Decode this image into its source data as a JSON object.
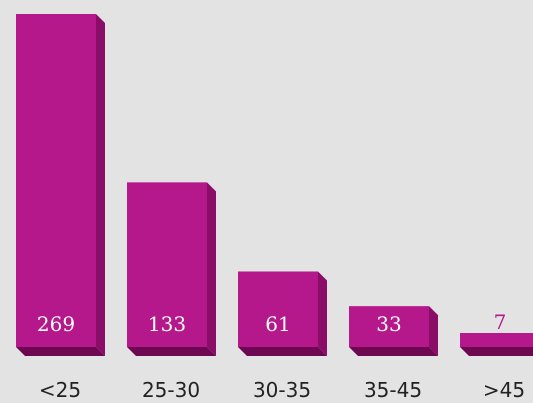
{
  "chart_data": {
    "type": "bar",
    "categories": [
      "<25",
      "25-30",
      "30-35",
      "35-45",
      ">45"
    ],
    "values": [
      269,
      133,
      61,
      33,
      7
    ],
    "value_labels": [
      "269",
      "133",
      "61",
      "33",
      "7"
    ],
    "title": "",
    "xlabel": "",
    "ylabel": "",
    "ylim": [
      0,
      269
    ],
    "grid": false,
    "legend": "none",
    "bar_style": "3d",
    "colors": {
      "background": "#e3e3e3",
      "bar_front": "#b4188a",
      "bar_side": "#8a0e68",
      "bar_top": "#9c1278",
      "bar_bottom": "#6e0752",
      "label_inside": "#ffffff",
      "label_outside": "#b4188a",
      "category_text": "#222222"
    }
  }
}
